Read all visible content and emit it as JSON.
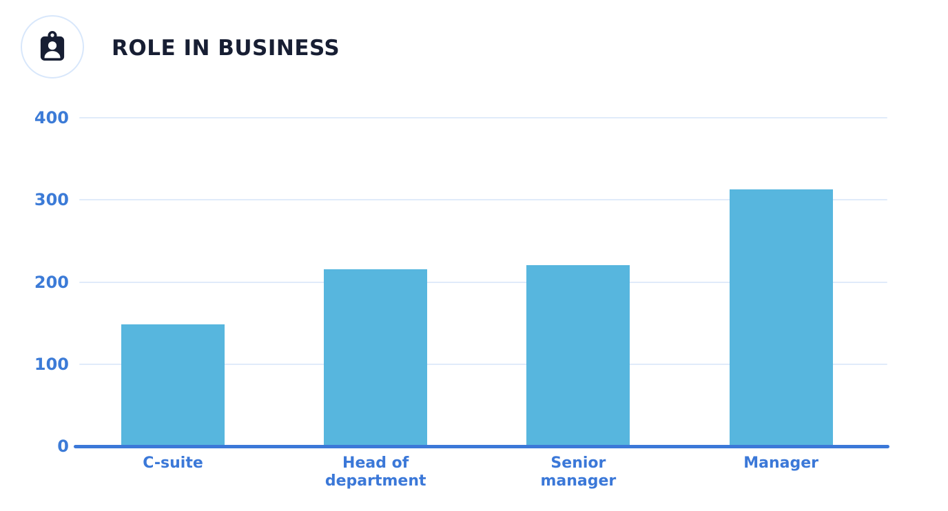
{
  "header": {
    "title": "ROLE IN BUSINESS",
    "icon": "id-badge-icon"
  },
  "colors": {
    "background": "#ffffff",
    "bar_fill": "#57b6de",
    "axis_line": "#3b78d8",
    "gridline": "#e0ebfa",
    "y_tick_label": "#3c7bd7",
    "category_label": "#3b78d8",
    "title_text": "#171e33",
    "icon_ring": "#d8e7fb",
    "icon_fill": "#171e33"
  },
  "chart_data": {
    "type": "bar",
    "title": "ROLE IN BUSINESS",
    "categories": [
      "C-suite",
      "Head of department",
      "Senior manager",
      "Manager"
    ],
    "values": [
      148,
      215,
      220,
      312
    ],
    "xlabel": "",
    "ylabel": "",
    "ylim": [
      0,
      400
    ],
    "yticks": [
      0,
      100,
      200,
      300,
      400
    ],
    "grid": true,
    "legend": false,
    "bar_color": "#57b6de"
  }
}
